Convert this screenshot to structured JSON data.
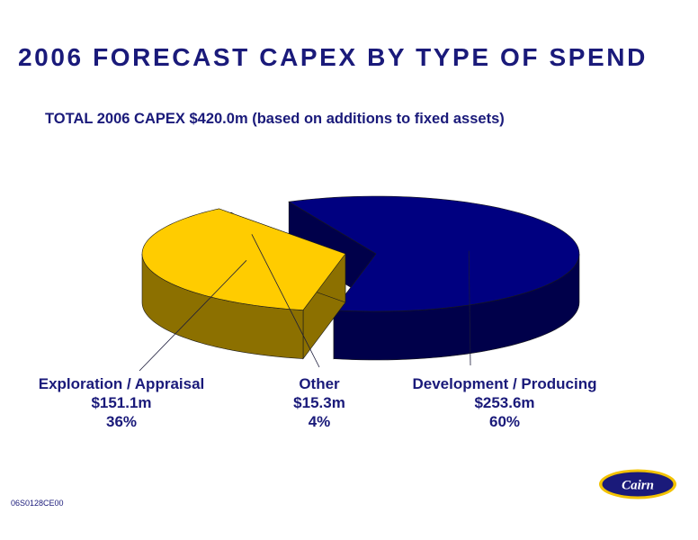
{
  "slide": {
    "title": "2006 FORECAST CAPEX BY TYPE OF SPEND",
    "subtitle": "TOTAL 2006 CAPEX $420.0m (based on additions to fixed assets)",
    "footer_code": "06S0128CE00",
    "logo_text": "Cairn"
  },
  "chart_data": {
    "type": "pie",
    "title": "2006 FORECAST CAPEX BY TYPE OF SPEND",
    "subtitle": "TOTAL 2006 CAPEX $420.0m (based on additions to fixed assets)",
    "total": 420.0,
    "unit": "$m",
    "three_d": true,
    "exploded": true,
    "slices": [
      {
        "name": "Exploration / Appraisal",
        "value": 151.1,
        "value_label": "$151.1m",
        "percent": 36,
        "percent_label": "36%",
        "color": "#ffcc00",
        "side_color": "#8c7000"
      },
      {
        "name": "Other",
        "value": 15.3,
        "value_label": "$15.3m",
        "percent": 4,
        "percent_label": "4%",
        "color": "#ff5050",
        "side_color": "#8c2a2a"
      },
      {
        "name": "Development / Producing",
        "value": 253.6,
        "value_label": "$253.6m",
        "percent": 60,
        "percent_label": "60%",
        "color": "#000080",
        "side_color": "#00004a"
      }
    ]
  }
}
